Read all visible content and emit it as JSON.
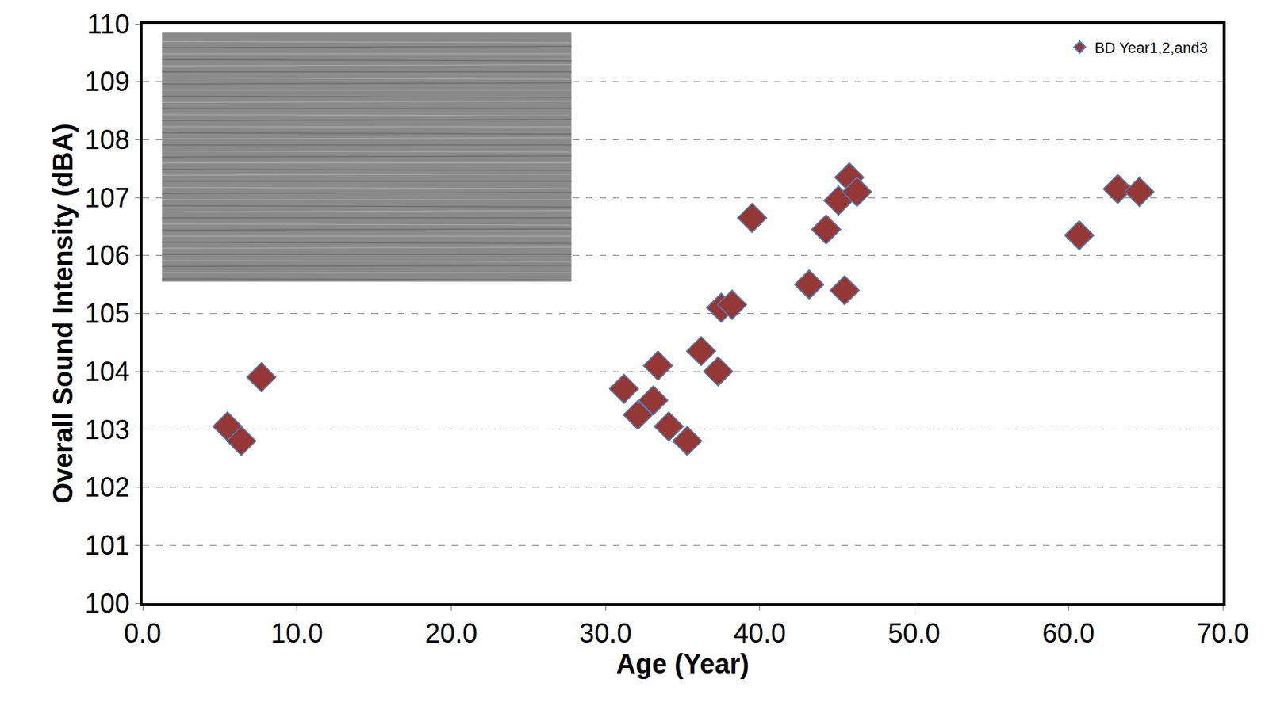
{
  "chart_data": {
    "type": "scatter",
    "x_label": "Age (Year)",
    "y_label": "Overall Sound Intensity (dBA)",
    "series": [
      {
        "name": "BD Year1,2,and3",
        "color": "#953735",
        "marker": "diamond",
        "x": [
          5.5,
          6.4,
          7.7,
          31.2,
          32.1,
          33.1,
          33.4,
          34.1,
          35.3,
          36.2,
          37.3,
          37.5,
          38.2,
          39.5,
          43.2,
          44.3,
          45.1,
          45.8,
          46.3,
          45.5,
          60.7,
          63.2,
          64.6
        ],
        "values": [
          103.05,
          102.8,
          103.9,
          103.7,
          103.25,
          103.5,
          104.1,
          103.05,
          102.8,
          104.35,
          104.0,
          105.1,
          105.15,
          106.65,
          105.5,
          106.45,
          106.95,
          107.35,
          107.1,
          105.4,
          106.35,
          107.15,
          107.1
        ]
      }
    ],
    "xlim": [
      0,
      70
    ],
    "xticks": [
      {
        "value": 0,
        "label": "0.0"
      },
      {
        "value": 10,
        "label": "10.0"
      },
      {
        "value": 20,
        "label": "20.0"
      },
      {
        "value": 30,
        "label": "30.0"
      },
      {
        "value": 40,
        "label": "40.0"
      },
      {
        "value": 50,
        "label": "50.0"
      },
      {
        "value": 60,
        "label": "60.0"
      },
      {
        "value": 70,
        "label": "70.0"
      }
    ],
    "ylim": [
      100,
      110
    ],
    "yticks": [
      100,
      101,
      102,
      103,
      104,
      105,
      106,
      107,
      108,
      109,
      110
    ],
    "grid": true,
    "legend": "upper right"
  }
}
